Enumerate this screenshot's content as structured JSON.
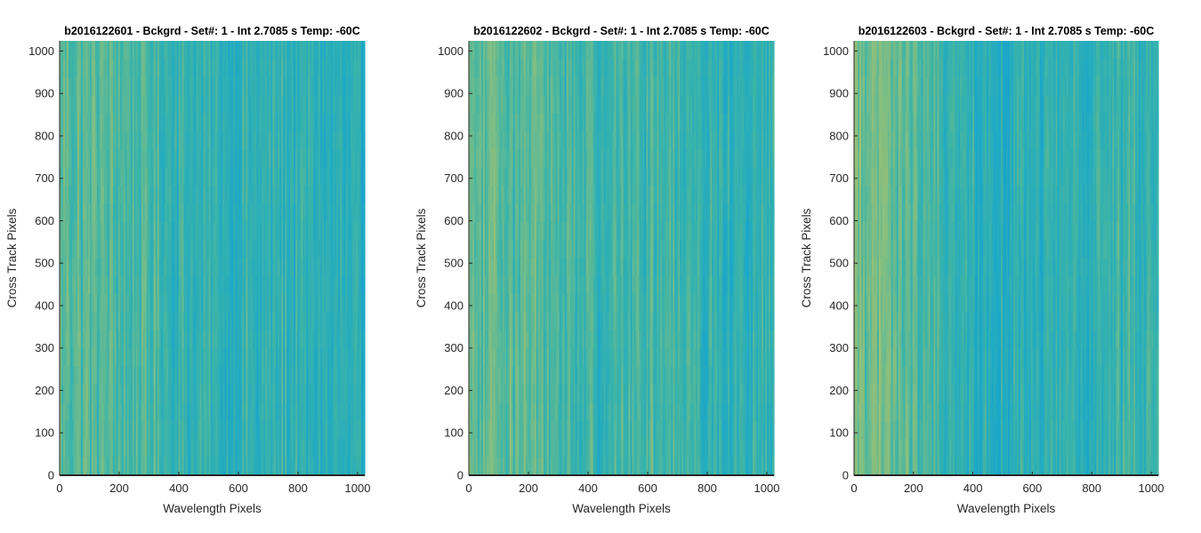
{
  "chart_data": [
    {
      "type": "heatmap",
      "title": "b2016122601 - Bckgrd - Set#: 1 - Int 2.7085 s Temp: -60C",
      "xlabel": "Wavelength Pixels",
      "ylabel": "Cross Track Pixels",
      "xlim": [
        0,
        1024
      ],
      "ylim": [
        0,
        1024
      ],
      "xticks": [
        0,
        200,
        400,
        600,
        800,
        1000
      ],
      "yticks": [
        0,
        100,
        200,
        300,
        400,
        500,
        600,
        700,
        800,
        900,
        1000
      ],
      "colormap": "parula",
      "column_profile": [
        0.6,
        0.58,
        0.57,
        0.56,
        0.55,
        0.5,
        0.46,
        0.44,
        0.43,
        0.42,
        0.42,
        0.43,
        0.41,
        0.4,
        0.38,
        0.36
      ]
    },
    {
      "type": "heatmap",
      "title": "b2016122602 - Bckgrd - Set#: 1 - Int 2.7085 s Temp: -60C",
      "xlabel": "Wavelength Pixels",
      "ylabel": "Cross Track Pixels",
      "xlim": [
        0,
        1024
      ],
      "ylim": [
        0,
        1024
      ],
      "xticks": [
        0,
        200,
        400,
        600,
        800,
        1000
      ],
      "yticks": [
        0,
        100,
        200,
        300,
        400,
        500,
        600,
        700,
        800,
        900,
        1000
      ],
      "colormap": "parula",
      "column_profile": [
        0.57,
        0.59,
        0.6,
        0.58,
        0.55,
        0.52,
        0.5,
        0.5,
        0.51,
        0.52,
        0.51,
        0.49,
        0.45,
        0.41,
        0.42,
        0.44
      ]
    },
    {
      "type": "heatmap",
      "title": "b2016122603 - Bckgrd - Set#: 1 - Int 2.7085 s Temp: -60C",
      "xlabel": "Wavelength Pixels",
      "ylabel": "Cross Track Pixels",
      "xlim": [
        0,
        1024
      ],
      "ylim": [
        0,
        1024
      ],
      "xticks": [
        0,
        200,
        400,
        600,
        800,
        1000
      ],
      "yticks": [
        0,
        100,
        200,
        300,
        400,
        500,
        600,
        700,
        800,
        900,
        1000
      ],
      "colormap": "parula",
      "column_profile": [
        0.68,
        0.66,
        0.62,
        0.58,
        0.5,
        0.44,
        0.41,
        0.39,
        0.4,
        0.42,
        0.43,
        0.44,
        0.45,
        0.45,
        0.46,
        0.46
      ]
    }
  ]
}
